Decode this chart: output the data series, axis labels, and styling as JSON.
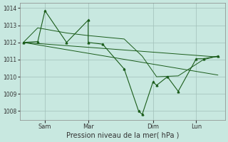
{
  "bg_color": "#c8e8e0",
  "grid_color": "#a0bfb8",
  "line_color": "#1a5c1a",
  "marker_color": "#1a5c1a",
  "xlabel": "Pression niveau de la mer( hPa )",
  "ylim": [
    1007.5,
    1014.3
  ],
  "yticks": [
    1008,
    1009,
    1010,
    1011,
    1012,
    1013,
    1014
  ],
  "x_tick_labels": [
    "Sam",
    "Mar",
    "Dim",
    "Lun"
  ],
  "x_tick_positions": [
    6,
    18,
    36,
    48
  ],
  "xlim": [
    -1,
    56
  ],
  "main_x": [
    0,
    4,
    6,
    12,
    18,
    18,
    22,
    28,
    32,
    33,
    36,
    37,
    40,
    43,
    48,
    50,
    54
  ],
  "main_y": [
    1012.0,
    1012.05,
    1013.85,
    1012.0,
    1013.3,
    1012.0,
    1011.9,
    1010.45,
    1008.0,
    1007.8,
    1009.7,
    1009.5,
    1010.0,
    1009.15,
    1011.05,
    1011.05,
    1011.2
  ],
  "trend1_x": [
    0,
    54
  ],
  "trend1_y": [
    1012.0,
    1011.15
  ],
  "trend2_x": [
    0,
    54
  ],
  "trend2_y": [
    1012.0,
    1010.1
  ],
  "smooth_x": [
    0,
    4,
    12,
    18,
    28,
    33,
    37,
    43,
    50,
    54
  ],
  "smooth_y": [
    1012.0,
    1012.85,
    1012.55,
    1012.4,
    1012.2,
    1011.2,
    1010.0,
    1010.05,
    1011.0,
    1011.2
  ],
  "xlabel_fontsize": 7,
  "ytick_fontsize": 5.5,
  "xtick_fontsize": 6
}
